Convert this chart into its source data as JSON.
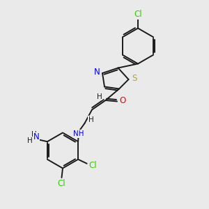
{
  "background_color": "#eaeaea",
  "bond_color": "#1a1a1a",
  "atom_colors": {
    "C": "#1a1a1a",
    "H": "#1a1a1a",
    "N": "#0000ee",
    "O": "#ee0000",
    "S": "#bbaa00",
    "Cl": "#33cc00"
  },
  "figsize": [
    3.0,
    3.0
  ],
  "dpi": 100,
  "lw": 1.4,
  "dbl_off": 0.08,
  "fs": 7.5,
  "fs_large": 8.5
}
